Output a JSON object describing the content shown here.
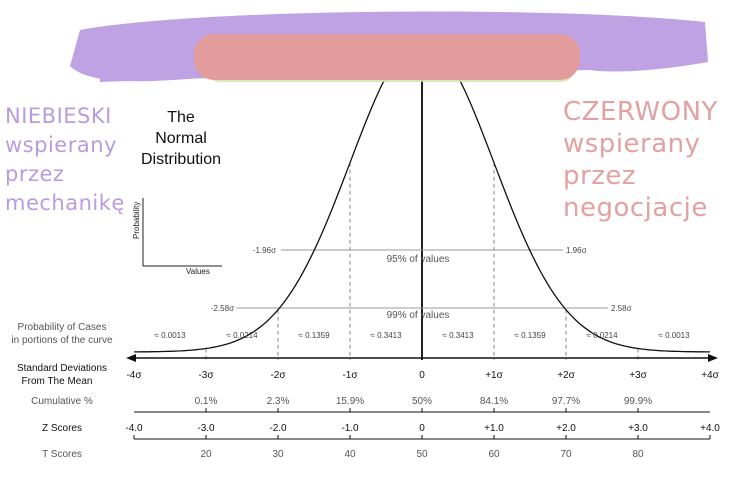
{
  "title_lines": [
    "The",
    "Normal",
    "Distribution"
  ],
  "left_caption": [
    "NIEBIESKI",
    "wspierany",
    "przez",
    "mechanikę"
  ],
  "right_caption": [
    "CZERWONY",
    "wspierany",
    "przez",
    "negocjacje"
  ],
  "mini_axes": {
    "y_label": "Probability",
    "x_label": "Values"
  },
  "colors": {
    "purple_scribble": "#bea2e3",
    "pink_scribble": "#e39c9c",
    "green_tint": "#cfe6a8",
    "left_caption": "#b99be0",
    "right_caption": "#e3a1a1"
  },
  "sigma_markers": {
    "ninety_five": {
      "left": "-1.96σ",
      "right": "1.96σ",
      "label": "95% of values"
    },
    "ninety_nine": {
      "left": "-2.58σ",
      "right": "2.58σ",
      "label": "99% of values"
    }
  },
  "probability_row": {
    "label_lines": [
      "Probability of Cases",
      "in portions of the curve"
    ],
    "values": [
      "≈ 0.0013",
      "≈ 0.0214",
      "≈ 0.1359",
      "≈ 0.3413",
      "≈ 0.3413",
      "≈ 0.1359",
      "≈ 0.0214",
      "≈ 0.0013"
    ]
  },
  "std_row": {
    "label_lines": [
      "Standard Deviations",
      "From The Mean"
    ],
    "values": [
      "-4σ",
      "-3σ",
      "-2σ",
      "-1σ",
      "0",
      "+1σ",
      "+2σ",
      "+3σ",
      "+4σ"
    ]
  },
  "cumulative_row": {
    "label": "Cumulative %",
    "values": [
      "0.1%",
      "2.3%",
      "15.9%",
      "50%",
      "84.1%",
      "97.7%",
      "99.9%"
    ]
  },
  "z_row": {
    "label": "Z Scores",
    "values": [
      "-4.0",
      "-3.0",
      "-2.0",
      "-1.0",
      "0",
      "+1.0",
      "+2.0",
      "+3.0",
      "+4.0"
    ]
  },
  "t_row": {
    "label": "T Scores",
    "values": [
      "20",
      "30",
      "40",
      "50",
      "60",
      "70",
      "80"
    ]
  }
}
